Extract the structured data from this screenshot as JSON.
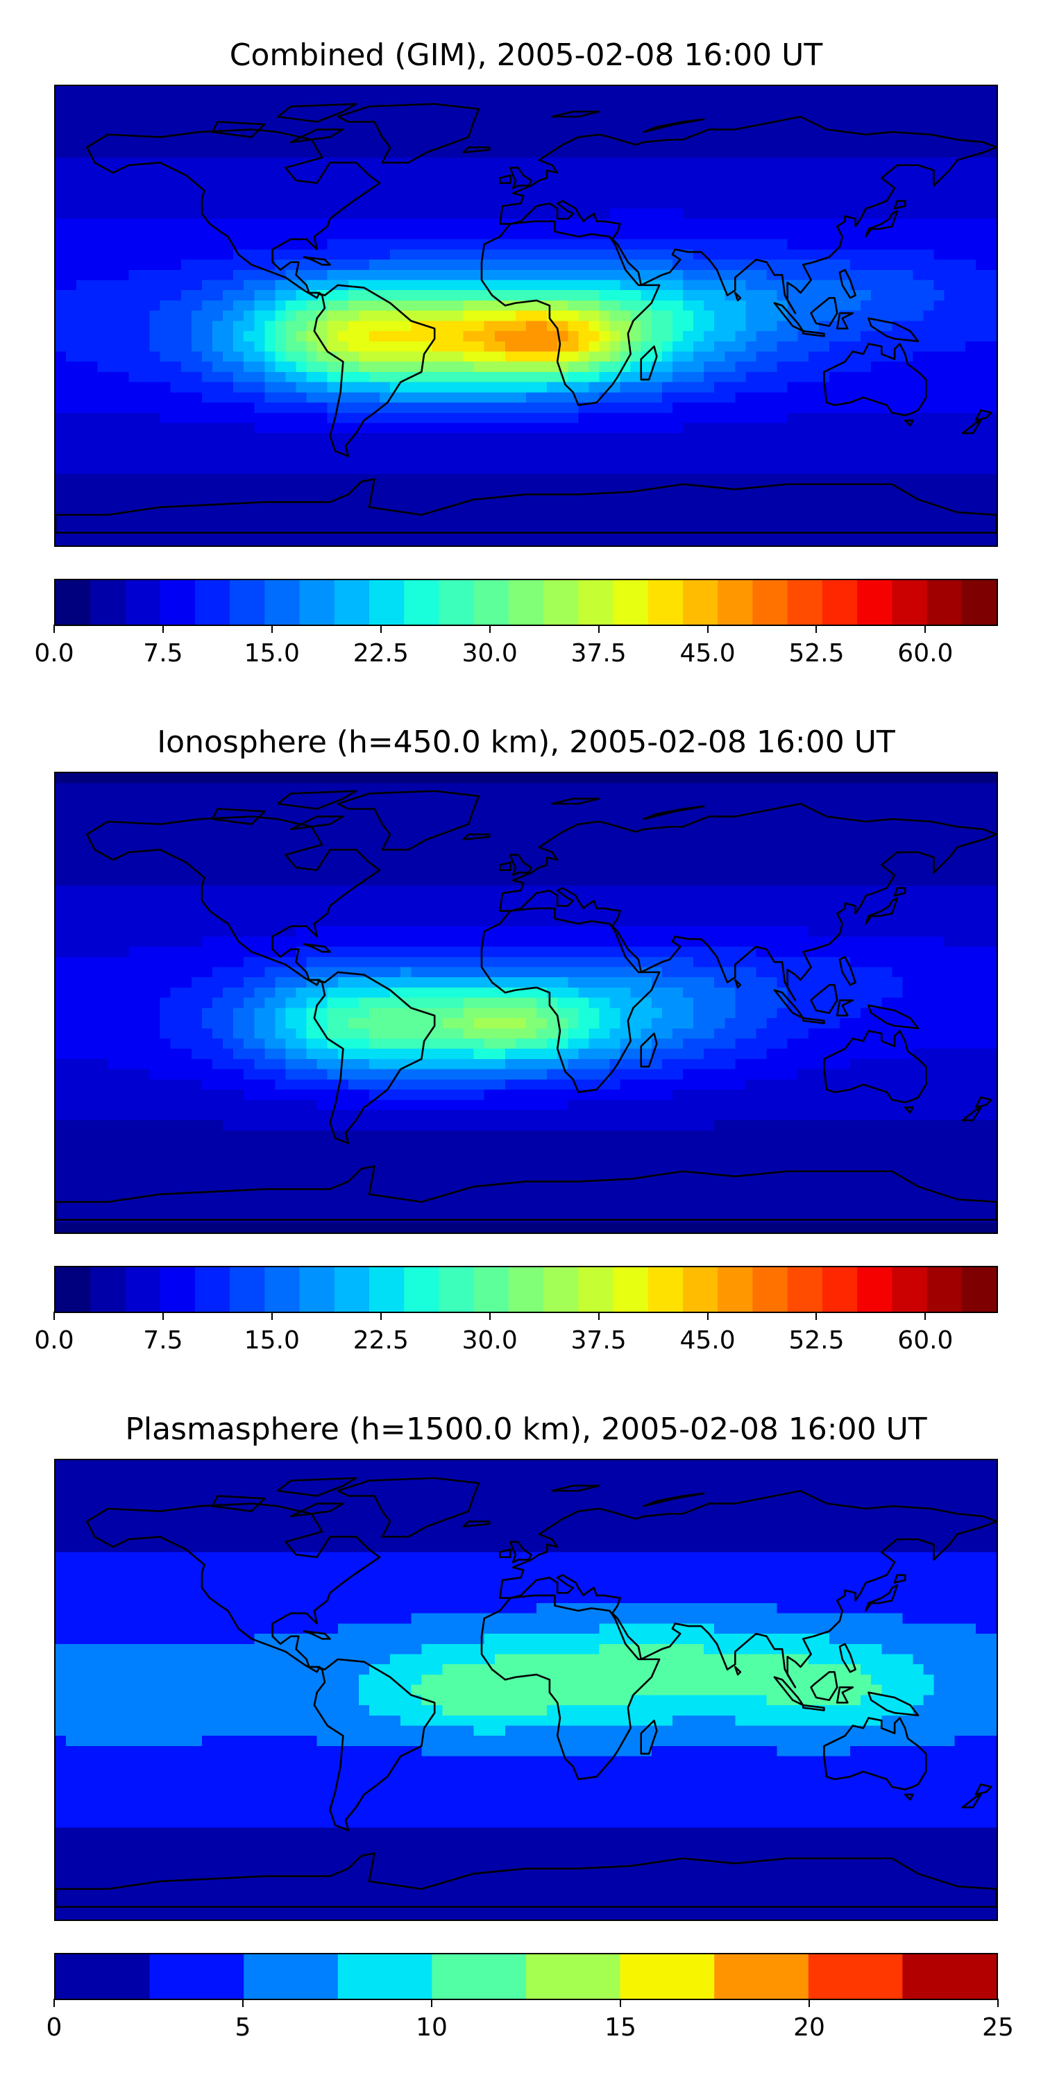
{
  "chart_data": [
    {
      "type": "heatmap",
      "title": "Combined (GIM), 2005-02-08 16:00 UT",
      "projection": "equirectangular",
      "lon_range": [
        -180,
        180
      ],
      "lat_range": [
        -90,
        90
      ],
      "coastlines": true,
      "peak": {
        "value": 47,
        "lon": -10,
        "lat": -8,
        "region": "equatorial Atlantic"
      },
      "colorbar": {
        "min": 0.0,
        "max": 65.0,
        "step": 2.5,
        "tick_values": [
          0.0,
          7.5,
          15.0,
          22.5,
          30.0,
          37.5,
          45.0,
          52.5,
          60.0
        ],
        "tick_labels": [
          "0.0",
          "7.5",
          "15.0",
          "22.5",
          "30.0",
          "37.5",
          "45.0",
          "52.5",
          "60.0"
        ],
        "colors": [
          "#00007f",
          "#0000a8",
          "#0000d0",
          "#0000f5",
          "#0022ff",
          "#0048ff",
          "#006dff",
          "#0093ff",
          "#00b8ff",
          "#00dff5",
          "#19ffdb",
          "#3bffbb",
          "#5dff9a",
          "#80ff77",
          "#a3ff55",
          "#c5ff33",
          "#e7ff10",
          "#ffe100",
          "#ffbc00",
          "#ff9700",
          "#ff7200",
          "#ff4c00",
          "#ff2700",
          "#f50200",
          "#cb0000",
          "#a00000",
          "#7f0000"
        ]
      }
    },
    {
      "type": "heatmap",
      "title": "Ionosphere  (h=450.0 km), 2005-02-08 16:00 UT",
      "projection": "equirectangular",
      "lon_range": [
        -180,
        180
      ],
      "lat_range": [
        -90,
        90
      ],
      "coastlines": true,
      "peak": {
        "value": 34,
        "lon": -5,
        "lat": -8,
        "region": "equatorial Atlantic"
      },
      "colorbar": {
        "min": 0.0,
        "max": 65.0,
        "step": 2.5,
        "tick_values": [
          0.0,
          7.5,
          15.0,
          22.5,
          30.0,
          37.5,
          45.0,
          52.5,
          60.0
        ],
        "tick_labels": [
          "0.0",
          "7.5",
          "15.0",
          "22.5",
          "30.0",
          "37.5",
          "45.0",
          "52.5",
          "60.0"
        ],
        "colors": [
          "#00007f",
          "#0000a8",
          "#0000d0",
          "#0000f5",
          "#0022ff",
          "#0048ff",
          "#006dff",
          "#0093ff",
          "#00b8ff",
          "#00dff5",
          "#19ffdb",
          "#3bffbb",
          "#5dff9a",
          "#80ff77",
          "#a3ff55",
          "#c5ff33",
          "#e7ff10",
          "#ffe100",
          "#ffbc00",
          "#ff9700",
          "#ff7200",
          "#ff4c00",
          "#ff2700",
          "#f50200",
          "#cb0000",
          "#a00000",
          "#7f0000"
        ]
      }
    },
    {
      "type": "heatmap",
      "title": "Plasmasphere (h=1500.0 km), 2005-02-08 16:00 UT",
      "projection": "equirectangular",
      "lon_range": [
        -180,
        180
      ],
      "lat_range": [
        -90,
        90
      ],
      "coastlines": true,
      "peak": {
        "value": 14,
        "lon": 30,
        "lat": 10,
        "region": "Africa / Indian Ocean"
      },
      "colorbar": {
        "min": 0,
        "max": 25,
        "step": 2.5,
        "tick_values": [
          0,
          5,
          10,
          15,
          20,
          25
        ],
        "tick_labels": [
          "0",
          "5",
          "10",
          "15",
          "20",
          "25"
        ],
        "colors": [
          "#0000a8",
          "#0012ff",
          "#0080ff",
          "#00e4f8",
          "#53ffa4",
          "#a5ff51",
          "#f8f500",
          "#ff9400",
          "#ff3800",
          "#b20000"
        ]
      }
    }
  ]
}
